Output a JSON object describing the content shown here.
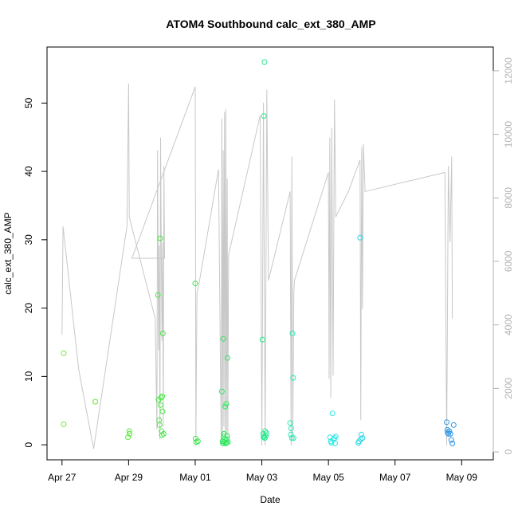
{
  "chart_data": {
    "type": "scatter",
    "title": "ATOM4 Southbound calc_ext_380_AMP",
    "xlabel": "Date",
    "ylabel": "calc_ext_380_AMP",
    "x_ticks": [
      "Apr 27",
      "Apr 29",
      "May 01",
      "May 03",
      "May 05",
      "May 07",
      "May 09"
    ],
    "y_ticks": [
      "0",
      "10",
      "20",
      "30",
      "40",
      "50"
    ],
    "y2_ticks": [
      "0",
      "2000",
      "4000",
      "6000",
      "8000",
      "10000",
      "12000"
    ],
    "x_range_days": [
      -0.45,
      12.95
    ],
    "ylim": [
      -2.2,
      58.2
    ],
    "y2lim": [
      -250,
      12750
    ],
    "grid": false,
    "points": [
      [
        0.05,
        13.4
      ],
      [
        0.05,
        3.0
      ],
      [
        1.0,
        6.3
      ],
      [
        1.98,
        1.1
      ],
      [
        2.02,
        2.0
      ],
      [
        2.03,
        1.6
      ],
      [
        2.88,
        21.9
      ],
      [
        2.9,
        6.6
      ],
      [
        2.92,
        3.6
      ],
      [
        2.93,
        2.9
      ],
      [
        2.95,
        30.2
      ],
      [
        2.96,
        5.8
      ],
      [
        2.97,
        6.9
      ],
      [
        2.99,
        2.0
      ],
      [
        3.0,
        1.4
      ],
      [
        3.01,
        7.1
      ],
      [
        3.02,
        4.9
      ],
      [
        3.03,
        16.3
      ],
      [
        3.05,
        1.6
      ],
      [
        4.0,
        23.6
      ],
      [
        4.01,
        0.9
      ],
      [
        4.03,
        0.4
      ],
      [
        4.08,
        0.5
      ],
      [
        4.8,
        7.8
      ],
      [
        4.82,
        0.5
      ],
      [
        4.83,
        0.2
      ],
      [
        4.84,
        15.5
      ],
      [
        4.85,
        1.2
      ],
      [
        4.86,
        1.6
      ],
      [
        4.87,
        0.4
      ],
      [
        4.88,
        0.8
      ],
      [
        4.9,
        5.6
      ],
      [
        4.91,
        0.2
      ],
      [
        4.93,
        6.0
      ],
      [
        4.94,
        0.3
      ],
      [
        4.95,
        0.8
      ],
      [
        4.96,
        1.3
      ],
      [
        4.97,
        12.7
      ],
      [
        4.98,
        0.4
      ],
      [
        6.02,
        15.4
      ],
      [
        6.04,
        1.6
      ],
      [
        6.05,
        1.1
      ],
      [
        6.06,
        48.1
      ],
      [
        6.07,
        1.2
      ],
      [
        6.08,
        56.0
      ],
      [
        6.09,
        1.0
      ],
      [
        6.1,
        2.0
      ],
      [
        6.12,
        1.3
      ],
      [
        6.14,
        1.7
      ],
      [
        6.85,
        3.2
      ],
      [
        6.87,
        1.5
      ],
      [
        6.88,
        2.4
      ],
      [
        6.9,
        1.0
      ],
      [
        6.92,
        16.3
      ],
      [
        6.94,
        9.8
      ],
      [
        6.95,
        1.0
      ],
      [
        8.05,
        1.1
      ],
      [
        8.07,
        0.5
      ],
      [
        8.09,
        0.3
      ],
      [
        8.12,
        4.6
      ],
      [
        8.15,
        0.8
      ],
      [
        8.18,
        1.0
      ],
      [
        8.2,
        0.2
      ],
      [
        8.22,
        1.2
      ],
      [
        8.9,
        0.3
      ],
      [
        8.92,
        0.5
      ],
      [
        8.95,
        30.3
      ],
      [
        8.97,
        0.8
      ],
      [
        8.99,
        1.5
      ],
      [
        9.02,
        1.0
      ],
      [
        11.55,
        3.3
      ],
      [
        11.57,
        2.2
      ],
      [
        11.58,
        1.8
      ],
      [
        11.6,
        1.6
      ],
      [
        11.63,
        2.0
      ],
      [
        11.66,
        1.6
      ],
      [
        11.69,
        0.7
      ],
      [
        11.72,
        0.2
      ],
      [
        11.76,
        2.9
      ]
    ],
    "line_y2": [
      [
        0.0,
        3700
      ],
      [
        0.03,
        7100
      ],
      [
        0.5,
        2600
      ],
      [
        0.95,
        100
      ],
      [
        1.95,
        7100
      ],
      [
        2.0,
        11600
      ],
      [
        2.02,
        7400
      ],
      [
        2.8,
        4200
      ],
      [
        2.85,
        700
      ],
      [
        2.87,
        9500
      ],
      [
        2.9,
        3200
      ],
      [
        2.92,
        6500
      ],
      [
        2.94,
        400
      ],
      [
        2.96,
        9900
      ],
      [
        2.98,
        6700
      ],
      [
        3.0,
        3500
      ],
      [
        3.02,
        6600
      ],
      [
        3.04,
        800
      ],
      [
        3.06,
        9000
      ],
      [
        3.08,
        6100
      ],
      [
        2.1,
        6100
      ],
      [
        4.0,
        11500
      ],
      [
        4.02,
        200
      ],
      [
        4.05,
        5000
      ],
      [
        4.1,
        5200
      ],
      [
        4.7,
        8900
      ],
      [
        4.78,
        200
      ],
      [
        4.8,
        10500
      ],
      [
        4.82,
        300
      ],
      [
        4.84,
        9500
      ],
      [
        4.86,
        800
      ],
      [
        4.88,
        10700
      ],
      [
        4.9,
        300
      ],
      [
        4.92,
        10800
      ],
      [
        4.94,
        600
      ],
      [
        4.96,
        8600
      ],
      [
        4.98,
        300
      ],
      [
        5.0,
        6200
      ],
      [
        5.95,
        10600
      ],
      [
        6.0,
        200
      ],
      [
        6.05,
        11000
      ],
      [
        6.1,
        200
      ],
      [
        6.15,
        11400
      ],
      [
        6.2,
        5400
      ],
      [
        6.85,
        8200
      ],
      [
        6.88,
        200
      ],
      [
        6.9,
        9300
      ],
      [
        6.93,
        400
      ],
      [
        6.96,
        5000
      ],
      [
        6.98,
        5400
      ],
      [
        8.0,
        8800
      ],
      [
        8.02,
        2300
      ],
      [
        8.04,
        9900
      ],
      [
        8.07,
        1700
      ],
      [
        8.1,
        10200
      ],
      [
        8.14,
        2400
      ],
      [
        8.18,
        11100
      ],
      [
        8.22,
        7400
      ],
      [
        8.6,
        8200
      ],
      [
        8.95,
        9200
      ],
      [
        8.97,
        1000
      ],
      [
        9.0,
        9600
      ],
      [
        9.02,
        4500
      ],
      [
        9.05,
        9700
      ],
      [
        9.1,
        8200
      ],
      [
        11.5,
        8800
      ],
      [
        11.55,
        200
      ],
      [
        11.6,
        9000
      ],
      [
        11.65,
        6600
      ],
      [
        11.7,
        9300
      ],
      [
        11.72,
        4200
      ]
    ],
    "colors": {
      "points_start": "#7be82a",
      "points_mid": "#2ae84a",
      "points_cyan": "#2ae8e8",
      "points_end": "#2a8ee8",
      "line": "#c8c8c8",
      "axis": "#000000",
      "axis_right": "#b3b3b3"
    }
  }
}
